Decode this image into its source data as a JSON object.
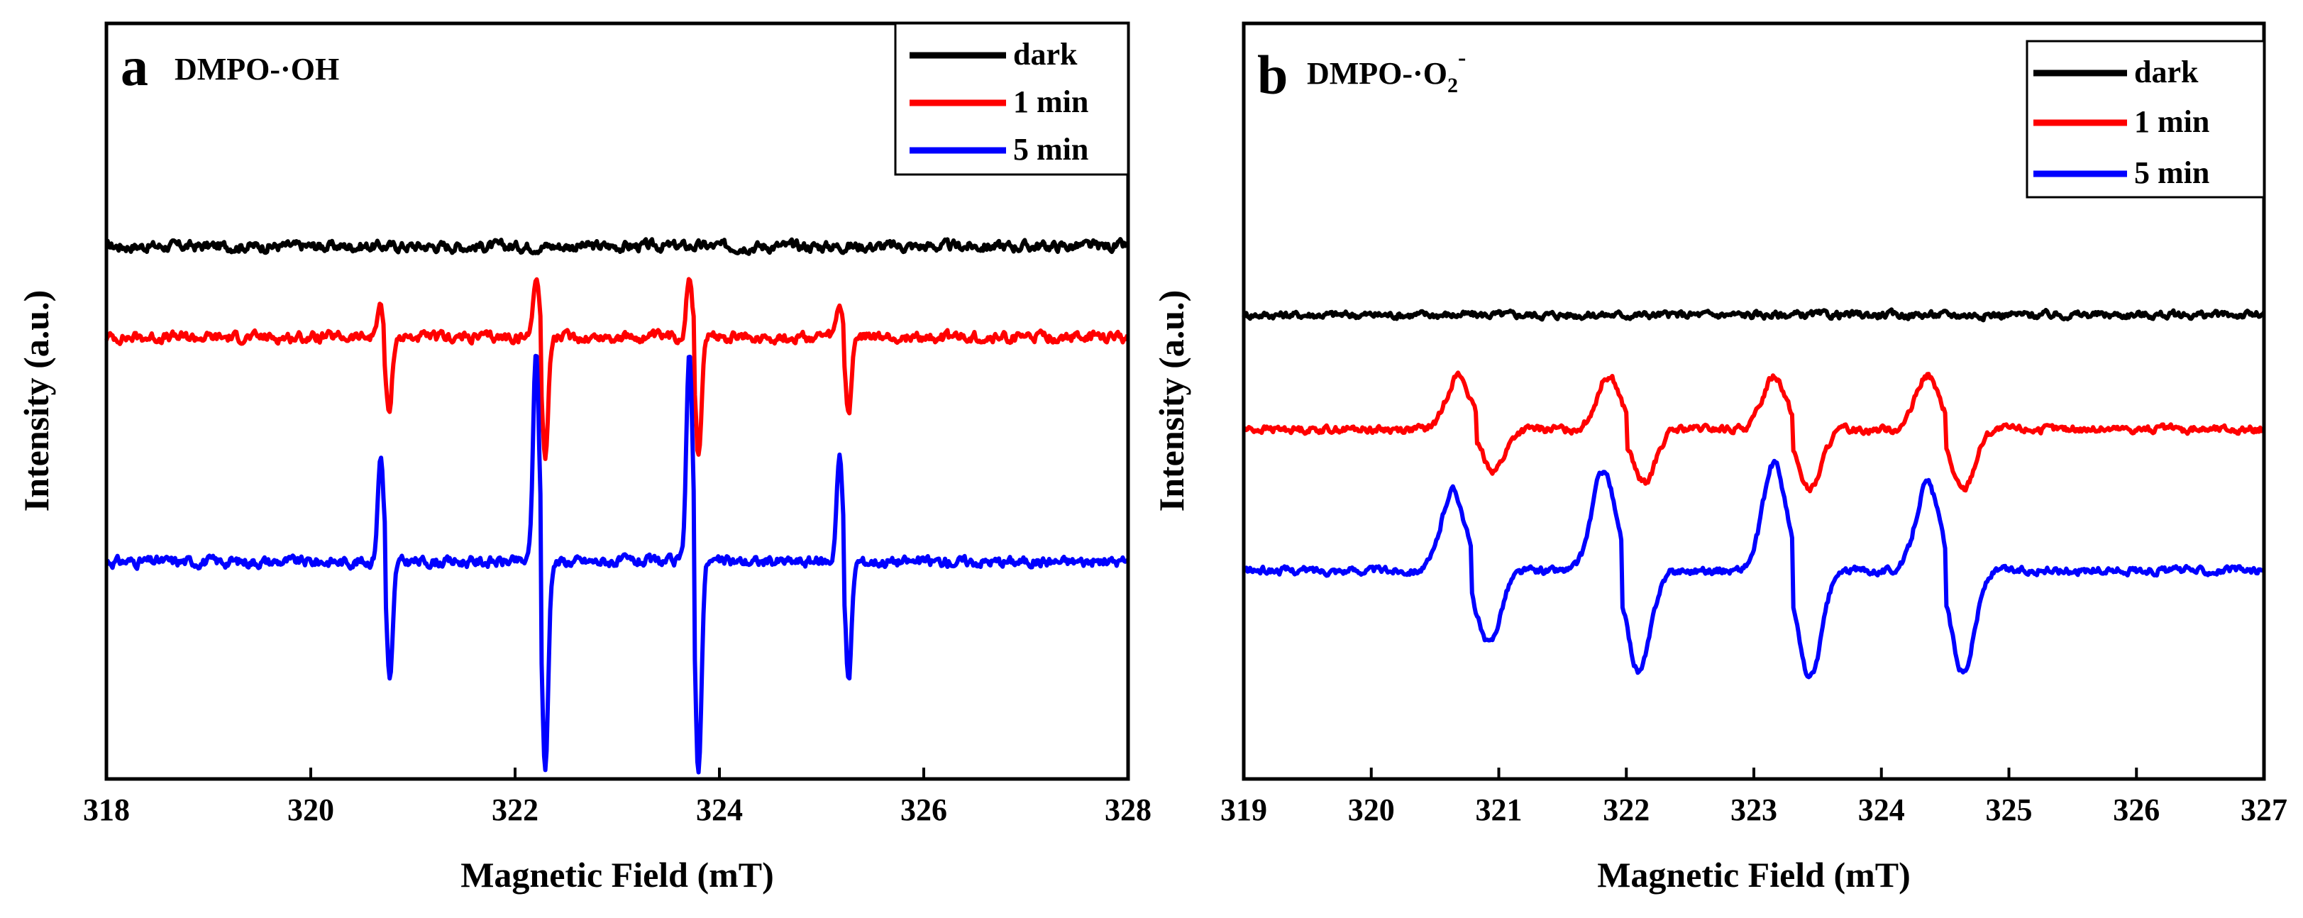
{
  "chart_data": [
    {
      "type": "line",
      "panel_label": "a",
      "title_main": "DMPO-·OH",
      "title_sup": "",
      "xlabel": "Magnetic Field (mT)",
      "ylabel": "Intensity (a.u.)",
      "xlim": [
        318,
        328
      ],
      "xticks": [
        "318",
        "320",
        "322",
        "324",
        "326",
        "328"
      ],
      "grid": false,
      "legend_position": "top-right",
      "baselines": {
        "dark": 0.76,
        "1 min": 0.63,
        "5 min": 0.31
      },
      "lines": [
        {
          "name": "dark",
          "color": "#000000",
          "peaks": []
        },
        {
          "name": "1 min",
          "color": "#ff0000",
          "peaks": [
            [
              320.72,
              0.045,
              0.11
            ],
            [
              322.25,
              0.09,
              0.17
            ],
            [
              323.75,
              0.09,
              0.17
            ],
            [
              325.22,
              0.045,
              0.11
            ]
          ]
        },
        {
          "name": "5 min",
          "color": "#0000ff",
          "peaks": [
            [
              320.73,
              0.15,
              0.17
            ],
            [
              322.25,
              0.3,
              0.3
            ],
            [
              323.75,
              0.3,
              0.3
            ],
            [
              325.22,
              0.15,
              0.17
            ]
          ]
        }
      ]
    },
    {
      "type": "line",
      "panel_label": "b",
      "title_main": "DMPO-·O",
      "title_sup": "2",
      "title_sup2": "-",
      "xlabel": "Magnetic Field (mT)",
      "ylabel": "Intensity (a.u.)",
      "xlim": [
        319,
        327
      ],
      "xticks": [
        "319",
        "320",
        "321",
        "322",
        "323",
        "324",
        "325",
        "326",
        "327"
      ],
      "grid": false,
      "legend_position": "top-right",
      "baselines": {
        "dark": 0.69,
        "1 min": 0.52,
        "5 min": 0.31
      },
      "lines": [
        {
          "name": "dark",
          "color": "#000000",
          "peaks": []
        },
        {
          "name": "1 min",
          "color": "#ff0000",
          "peaks": [
            [
              320.82,
              0.08,
              0.06
            ],
            [
              322.0,
              0.08,
              0.08
            ],
            [
              323.3,
              0.08,
              0.09
            ],
            [
              324.5,
              0.08,
              0.09
            ]
          ]
        },
        {
          "name": "5 min",
          "color": "#0000ff",
          "peaks": [
            [
              320.78,
              0.12,
              0.11
            ],
            [
              321.96,
              0.15,
              0.15
            ],
            [
              323.3,
              0.16,
              0.16
            ],
            [
              324.5,
              0.13,
              0.15
            ]
          ]
        }
      ]
    }
  ]
}
